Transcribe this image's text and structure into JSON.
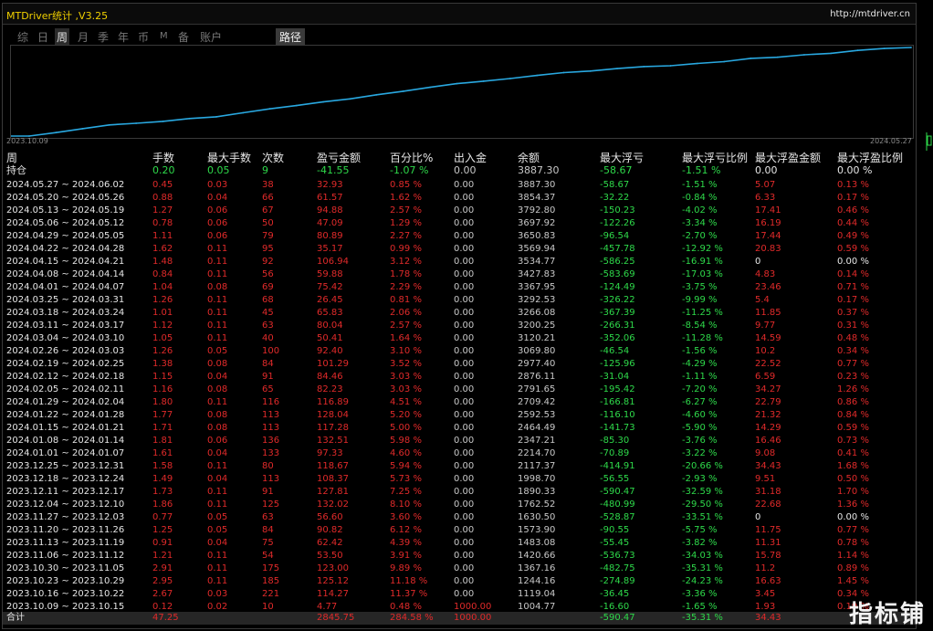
{
  "app": {
    "title": "MTDriver统计 ,V3.25",
    "url": "http://mtdriver.cn"
  },
  "tabs": [
    {
      "label": "综",
      "active": false
    },
    {
      "label": "日",
      "active": false
    },
    {
      "label": "周",
      "active": true
    },
    {
      "label": "月",
      "active": false
    },
    {
      "label": "季",
      "active": false
    },
    {
      "label": "年",
      "active": false
    },
    {
      "label": "币",
      "active": false
    },
    {
      "label": "M",
      "active": false
    },
    {
      "label": "备",
      "active": false
    },
    {
      "label": "账户",
      "active": false
    }
  ],
  "path_button": "路径",
  "chart_data": {
    "type": "line",
    "x_start_label": "2023.10.09",
    "x_end_label": "2024.05.27",
    "series": [
      {
        "color": "#29a8e0",
        "values": [
          1004.77,
          1119.04,
          1244.16,
          1367.16,
          1420.66,
          1483.08,
          1573.9,
          1630.5,
          1762.52,
          1890.33,
          1998.7,
          2117.37,
          2214.7,
          2347.21,
          2464.49,
          2592.53,
          2709.42,
          2791.65,
          2876.11,
          2977.4,
          3069.8,
          3120.21,
          3200.25,
          3266.08,
          3292.53,
          3367.95,
          3427.83,
          3534.77,
          3569.94,
          3650.83,
          3697.92,
          3792.8,
          3854.37,
          3887.3
        ]
      }
    ]
  },
  "table": {
    "headers": {
      "week": "周",
      "lots": "手数",
      "max_lots": "最大手数",
      "count": "次数",
      "pl": "盈亏金额",
      "pct": "百分比%",
      "io": "出入金",
      "balance": "余额",
      "max_loss": "最大浮亏",
      "max_loss_pct": "最大浮亏比例",
      "max_profit": "最大浮盈金额",
      "max_profit_pct": "最大浮盈比例"
    },
    "holding": {
      "week": "持仓",
      "lots": "0.20",
      "max_lots": "0.05",
      "count": "9",
      "pl": "-41.55",
      "pct": "-1.07 %",
      "io": "0.00",
      "balance": "3887.30",
      "max_loss": "-58.67",
      "max_loss_pct": "-1.51 %",
      "max_profit": "0.00",
      "max_profit_pct": "0.00 %"
    },
    "rows": [
      {
        "week": "2024.05.27 ~ 2024.06.02",
        "lots": "0.45",
        "max_lots": "0.03",
        "count": "38",
        "pl": "32.93",
        "pct": "0.85 %",
        "io": "0.00",
        "balance": "3887.30",
        "max_loss": "-58.67",
        "max_loss_pct": "-1.51 %",
        "max_profit": "5.07",
        "max_profit_pct": "0.13 %"
      },
      {
        "week": "2024.05.20 ~ 2024.05.26",
        "lots": "0.88",
        "max_lots": "0.04",
        "count": "66",
        "pl": "61.57",
        "pct": "1.62 %",
        "io": "0.00",
        "balance": "3854.37",
        "max_loss": "-32.22",
        "max_loss_pct": "-0.84 %",
        "max_profit": "6.33",
        "max_profit_pct": "0.17 %"
      },
      {
        "week": "2024.05.13 ~ 2024.05.19",
        "lots": "1.27",
        "max_lots": "0.06",
        "count": "67",
        "pl": "94.88",
        "pct": "2.57 %",
        "io": "0.00",
        "balance": "3792.80",
        "max_loss": "-150.23",
        "max_loss_pct": "-4.02 %",
        "max_profit": "17.41",
        "max_profit_pct": "0.46 %"
      },
      {
        "week": "2024.05.06 ~ 2024.05.12",
        "lots": "0.78",
        "max_lots": "0.06",
        "count": "50",
        "pl": "47.09",
        "pct": "1.29 %",
        "io": "0.00",
        "balance": "3697.92",
        "max_loss": "-122.26",
        "max_loss_pct": "-3.34 %",
        "max_profit": "16.19",
        "max_profit_pct": "0.44 %"
      },
      {
        "week": "2024.04.29 ~ 2024.05.05",
        "lots": "1.11",
        "max_lots": "0.06",
        "count": "79",
        "pl": "80.89",
        "pct": "2.27 %",
        "io": "0.00",
        "balance": "3650.83",
        "max_loss": "-96.54",
        "max_loss_pct": "-2.70 %",
        "max_profit": "17.44",
        "max_profit_pct": "0.49 %"
      },
      {
        "week": "2024.04.22 ~ 2024.04.28",
        "lots": "1.62",
        "max_lots": "0.11",
        "count": "95",
        "pl": "35.17",
        "pct": "0.99 %",
        "io": "0.00",
        "balance": "3569.94",
        "max_loss": "-457.78",
        "max_loss_pct": "-12.92 %",
        "max_profit": "20.83",
        "max_profit_pct": "0.59 %"
      },
      {
        "week": "2024.04.15 ~ 2024.04.21",
        "lots": "1.48",
        "max_lots": "0.11",
        "count": "92",
        "pl": "106.94",
        "pct": "3.12 %",
        "io": "0.00",
        "balance": "3534.77",
        "max_loss": "-586.25",
        "max_loss_pct": "-16.91 %",
        "max_profit": "0",
        "max_profit_pct": "0.00 %"
      },
      {
        "week": "2024.04.08 ~ 2024.04.14",
        "lots": "0.84",
        "max_lots": "0.11",
        "count": "56",
        "pl": "59.88",
        "pct": "1.78 %",
        "io": "0.00",
        "balance": "3427.83",
        "max_loss": "-583.69",
        "max_loss_pct": "-17.03 %",
        "max_profit": "4.83",
        "max_profit_pct": "0.14 %"
      },
      {
        "week": "2024.04.01 ~ 2024.04.07",
        "lots": "1.04",
        "max_lots": "0.08",
        "count": "69",
        "pl": "75.42",
        "pct": "2.29 %",
        "io": "0.00",
        "balance": "3367.95",
        "max_loss": "-124.49",
        "max_loss_pct": "-3.75 %",
        "max_profit": "23.46",
        "max_profit_pct": "0.71 %"
      },
      {
        "week": "2024.03.25 ~ 2024.03.31",
        "lots": "1.26",
        "max_lots": "0.11",
        "count": "68",
        "pl": "26.45",
        "pct": "0.81 %",
        "io": "0.00",
        "balance": "3292.53",
        "max_loss": "-326.22",
        "max_loss_pct": "-9.99 %",
        "max_profit": "5.4",
        "max_profit_pct": "0.17 %"
      },
      {
        "week": "2024.03.18 ~ 2024.03.24",
        "lots": "1.01",
        "max_lots": "0.11",
        "count": "45",
        "pl": "65.83",
        "pct": "2.06 %",
        "io": "0.00",
        "balance": "3266.08",
        "max_loss": "-367.39",
        "max_loss_pct": "-11.25 %",
        "max_profit": "11.85",
        "max_profit_pct": "0.37 %"
      },
      {
        "week": "2024.03.11 ~ 2024.03.17",
        "lots": "1.12",
        "max_lots": "0.11",
        "count": "63",
        "pl": "80.04",
        "pct": "2.57 %",
        "io": "0.00",
        "balance": "3200.25",
        "max_loss": "-266.31",
        "max_loss_pct": "-8.54 %",
        "max_profit": "9.77",
        "max_profit_pct": "0.31 %"
      },
      {
        "week": "2024.03.04 ~ 2024.03.10",
        "lots": "1.05",
        "max_lots": "0.11",
        "count": "40",
        "pl": "50.41",
        "pct": "1.64 %",
        "io": "0.00",
        "balance": "3120.21",
        "max_loss": "-352.06",
        "max_loss_pct": "-11.28 %",
        "max_profit": "14.59",
        "max_profit_pct": "0.48 %"
      },
      {
        "week": "2024.02.26 ~ 2024.03.03",
        "lots": "1.26",
        "max_lots": "0.05",
        "count": "100",
        "pl": "92.40",
        "pct": "3.10 %",
        "io": "0.00",
        "balance": "3069.80",
        "max_loss": "-46.54",
        "max_loss_pct": "-1.56 %",
        "max_profit": "10.2",
        "max_profit_pct": "0.34 %"
      },
      {
        "week": "2024.02.19 ~ 2024.02.25",
        "lots": "1.38",
        "max_lots": "0.08",
        "count": "84",
        "pl": "101.29",
        "pct": "3.52 %",
        "io": "0.00",
        "balance": "2977.40",
        "max_loss": "-125.96",
        "max_loss_pct": "-4.29 %",
        "max_profit": "22.52",
        "max_profit_pct": "0.77 %"
      },
      {
        "week": "2024.02.12 ~ 2024.02.18",
        "lots": "1.15",
        "max_lots": "0.04",
        "count": "91",
        "pl": "84.46",
        "pct": "3.03 %",
        "io": "0.00",
        "balance": "2876.11",
        "max_loss": "-31.04",
        "max_loss_pct": "-1.11 %",
        "max_profit": "6.59",
        "max_profit_pct": "0.23 %"
      },
      {
        "week": "2024.02.05 ~ 2024.02.11",
        "lots": "1.16",
        "max_lots": "0.08",
        "count": "65",
        "pl": "82.23",
        "pct": "3.03 %",
        "io": "0.00",
        "balance": "2791.65",
        "max_loss": "-195.42",
        "max_loss_pct": "-7.20 %",
        "max_profit": "34.27",
        "max_profit_pct": "1.26 %"
      },
      {
        "week": "2024.01.29 ~ 2024.02.04",
        "lots": "1.80",
        "max_lots": "0.11",
        "count": "116",
        "pl": "116.89",
        "pct": "4.51 %",
        "io": "0.00",
        "balance": "2709.42",
        "max_loss": "-166.81",
        "max_loss_pct": "-6.27 %",
        "max_profit": "22.79",
        "max_profit_pct": "0.86 %"
      },
      {
        "week": "2024.01.22 ~ 2024.01.28",
        "lots": "1.77",
        "max_lots": "0.08",
        "count": "113",
        "pl": "128.04",
        "pct": "5.20 %",
        "io": "0.00",
        "balance": "2592.53",
        "max_loss": "-116.10",
        "max_loss_pct": "-4.60 %",
        "max_profit": "21.32",
        "max_profit_pct": "0.84 %"
      },
      {
        "week": "2024.01.15 ~ 2024.01.21",
        "lots": "1.71",
        "max_lots": "0.08",
        "count": "113",
        "pl": "117.28",
        "pct": "5.00 %",
        "io": "0.00",
        "balance": "2464.49",
        "max_loss": "-141.73",
        "max_loss_pct": "-5.90 %",
        "max_profit": "14.29",
        "max_profit_pct": "0.59 %"
      },
      {
        "week": "2024.01.08 ~ 2024.01.14",
        "lots": "1.81",
        "max_lots": "0.06",
        "count": "136",
        "pl": "132.51",
        "pct": "5.98 %",
        "io": "0.00",
        "balance": "2347.21",
        "max_loss": "-85.30",
        "max_loss_pct": "-3.76 %",
        "max_profit": "16.46",
        "max_profit_pct": "0.73 %"
      },
      {
        "week": "2024.01.01 ~ 2024.01.07",
        "lots": "1.61",
        "max_lots": "0.04",
        "count": "133",
        "pl": "97.33",
        "pct": "4.60 %",
        "io": "0.00",
        "balance": "2214.70",
        "max_loss": "-70.89",
        "max_loss_pct": "-3.22 %",
        "max_profit": "9.08",
        "max_profit_pct": "0.41 %"
      },
      {
        "week": "2023.12.25 ~ 2023.12.31",
        "lots": "1.58",
        "max_lots": "0.11",
        "count": "80",
        "pl": "118.67",
        "pct": "5.94 %",
        "io": "0.00",
        "balance": "2117.37",
        "max_loss": "-414.91",
        "max_loss_pct": "-20.66 %",
        "max_profit": "34.43",
        "max_profit_pct": "1.68 %"
      },
      {
        "week": "2023.12.18 ~ 2023.12.24",
        "lots": "1.49",
        "max_lots": "0.04",
        "count": "113",
        "pl": "108.37",
        "pct": "5.73 %",
        "io": "0.00",
        "balance": "1998.70",
        "max_loss": "-56.55",
        "max_loss_pct": "-2.93 %",
        "max_profit": "9.51",
        "max_profit_pct": "0.50 %"
      },
      {
        "week": "2023.12.11 ~ 2023.12.17",
        "lots": "1.73",
        "max_lots": "0.11",
        "count": "91",
        "pl": "127.81",
        "pct": "7.25 %",
        "io": "0.00",
        "balance": "1890.33",
        "max_loss": "-590.47",
        "max_loss_pct": "-32.59 %",
        "max_profit": "31.18",
        "max_profit_pct": "1.70 %"
      },
      {
        "week": "2023.12.04 ~ 2023.12.10",
        "lots": "1.86",
        "max_lots": "0.11",
        "count": "125",
        "pl": "132.02",
        "pct": "8.10 %",
        "io": "0.00",
        "balance": "1762.52",
        "max_loss": "-480.99",
        "max_loss_pct": "-29.50 %",
        "max_profit": "22.68",
        "max_profit_pct": "1.36 %"
      },
      {
        "week": "2023.11.27 ~ 2023.12.03",
        "lots": "0.77",
        "max_lots": "0.05",
        "count": "63",
        "pl": "56.60",
        "pct": "3.60 %",
        "io": "0.00",
        "balance": "1630.50",
        "max_loss": "-528.87",
        "max_loss_pct": "-33.51 %",
        "max_profit": "0",
        "max_profit_pct": "0.00 %"
      },
      {
        "week": "2023.11.20 ~ 2023.11.26",
        "lots": "1.25",
        "max_lots": "0.05",
        "count": "84",
        "pl": "90.82",
        "pct": "6.12 %",
        "io": "0.00",
        "balance": "1573.90",
        "max_loss": "-90.55",
        "max_loss_pct": "-5.75 %",
        "max_profit": "11.75",
        "max_profit_pct": "0.77 %"
      },
      {
        "week": "2023.11.13 ~ 2023.11.19",
        "lots": "0.91",
        "max_lots": "0.04",
        "count": "75",
        "pl": "62.42",
        "pct": "4.39 %",
        "io": "0.00",
        "balance": "1483.08",
        "max_loss": "-55.45",
        "max_loss_pct": "-3.82 %",
        "max_profit": "11.31",
        "max_profit_pct": "0.78 %"
      },
      {
        "week": "2023.11.06 ~ 2023.11.12",
        "lots": "1.21",
        "max_lots": "0.11",
        "count": "54",
        "pl": "53.50",
        "pct": "3.91 %",
        "io": "0.00",
        "balance": "1420.66",
        "max_loss": "-536.73",
        "max_loss_pct": "-34.03 %",
        "max_profit": "15.78",
        "max_profit_pct": "1.14 %"
      },
      {
        "week": "2023.10.30 ~ 2023.11.05",
        "lots": "2.91",
        "max_lots": "0.11",
        "count": "175",
        "pl": "123.00",
        "pct": "9.89 %",
        "io": "0.00",
        "balance": "1367.16",
        "max_loss": "-482.75",
        "max_loss_pct": "-35.31 %",
        "max_profit": "11.2",
        "max_profit_pct": "0.89 %"
      },
      {
        "week": "2023.10.23 ~ 2023.10.29",
        "lots": "2.95",
        "max_lots": "0.11",
        "count": "185",
        "pl": "125.12",
        "pct": "11.18 %",
        "io": "0.00",
        "balance": "1244.16",
        "max_loss": "-274.89",
        "max_loss_pct": "-24.23 %",
        "max_profit": "16.63",
        "max_profit_pct": "1.45 %"
      },
      {
        "week": "2023.10.16 ~ 2023.10.22",
        "lots": "2.67",
        "max_lots": "0.03",
        "count": "221",
        "pl": "114.27",
        "pct": "11.37 %",
        "io": "0.00",
        "balance": "1119.04",
        "max_loss": "-36.45",
        "max_loss_pct": "-3.36 %",
        "max_profit": "3.45",
        "max_profit_pct": "0.34 %"
      },
      {
        "week": "2023.10.09 ~ 2023.10.15",
        "lots": "0.12",
        "max_lots": "0.02",
        "count": "10",
        "pl": "4.77",
        "pct": "0.48 %",
        "io": "1000.00",
        "balance": "1004.77",
        "max_loss": "-16.60",
        "max_loss_pct": "-1.65 %",
        "max_profit": "1.93",
        "max_profit_pct": "0.19 %"
      }
    ],
    "total": {
      "week": "合计",
      "lots": "47.25",
      "pl": "2845.75",
      "pct": "284.58 %",
      "io": "1000.00",
      "max_loss": "-590.47",
      "max_loss_pct": "-35.31 %",
      "max_profit": "34.43"
    }
  },
  "watermark": "指标铺",
  "colors": {
    "accent": "#29a8e0",
    "red": "#e02a2a",
    "green": "#2ed94a",
    "title": "#f0d000"
  }
}
